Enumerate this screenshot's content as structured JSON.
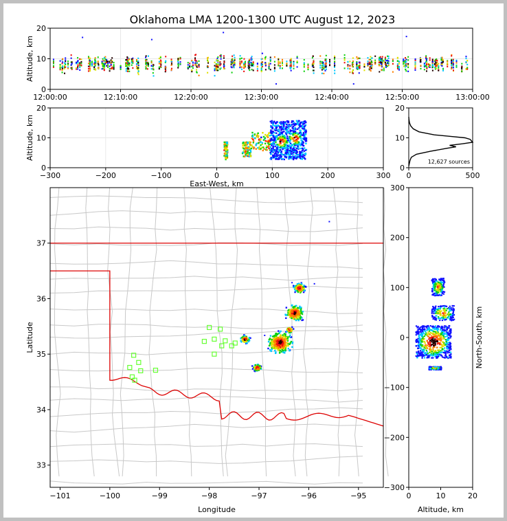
{
  "title": "Oklahoma LMA 1200-1300 UTC August 12, 2023",
  "colors": {
    "background": "#c0c0c0",
    "state_border": "#dd0000",
    "county_lines": "#c8c8c8",
    "stations": "#66ff33",
    "histogram": "#000000"
  },
  "chart_data": [
    {
      "id": "time-altitude",
      "type": "scatter",
      "xlabel": "",
      "ylabel": "Altitude, km",
      "xlim": [
        "12:00:00",
        "13:00:00"
      ],
      "ylim": [
        0,
        20
      ],
      "xticks": [
        "12:00:00",
        "12:10:00",
        "12:20:00",
        "12:30:00",
        "12:40:00",
        "12:50:00",
        "13:00:00"
      ],
      "yticks": [
        0,
        10,
        20
      ],
      "grid": true,
      "data_extent": {
        "altitude_km": [
          1,
          19
        ]
      }
    },
    {
      "id": "ew-altitude",
      "type": "scatter",
      "xlabel": "East-West, km",
      "ylabel": "Altitude, km",
      "xlim": [
        -300,
        300
      ],
      "ylim": [
        0,
        20
      ],
      "xticks": [
        -300,
        -200,
        -100,
        0,
        100,
        200,
        300
      ],
      "yticks": [
        0,
        10,
        20
      ],
      "grid": true,
      "clusters": [
        {
          "x_km": [
            12,
            18
          ],
          "alt_km": [
            3,
            9
          ]
        },
        {
          "x_km": [
            45,
            60
          ],
          "alt_km": [
            4,
            9
          ]
        },
        {
          "x_km": [
            60,
            95
          ],
          "alt_km": [
            6,
            12
          ]
        },
        {
          "x_km": [
            95,
            160
          ],
          "alt_km": [
            3,
            16
          ]
        }
      ],
      "densest_cores": [
        {
          "x_km": 115,
          "alt_km": 9
        },
        {
          "x_km": 140,
          "alt_km": 10
        }
      ]
    },
    {
      "id": "altitude-histogram",
      "type": "line",
      "xlabel": "",
      "ylabel": "",
      "xlim": [
        0,
        500
      ],
      "ylim": [
        0,
        20
      ],
      "xticks": [
        0,
        500
      ],
      "yticks": [
        0,
        10,
        20
      ],
      "annotation": "12,627 sources",
      "profile": [
        {
          "alt": 0.5,
          "count": 0
        },
        {
          "alt": 1.5,
          "count": 5
        },
        {
          "alt": 2.5,
          "count": 10
        },
        {
          "alt": 3.5,
          "count": 20
        },
        {
          "alt": 4.5,
          "count": 60
        },
        {
          "alt": 5.5,
          "count": 170
        },
        {
          "alt": 6.5,
          "count": 300
        },
        {
          "alt": 7.0,
          "count": 370
        },
        {
          "alt": 7.5,
          "count": 320
        },
        {
          "alt": 8.0,
          "count": 420
        },
        {
          "alt": 8.5,
          "count": 500
        },
        {
          "alt": 9.0,
          "count": 490
        },
        {
          "alt": 9.5,
          "count": 480
        },
        {
          "alt": 10.0,
          "count": 440
        },
        {
          "alt": 10.5,
          "count": 320
        },
        {
          "alt": 11.0,
          "count": 200
        },
        {
          "alt": 12.0,
          "count": 80
        },
        {
          "alt": 13.0,
          "count": 35
        },
        {
          "alt": 14.0,
          "count": 15
        },
        {
          "alt": 15.0,
          "count": 6
        },
        {
          "alt": 16.0,
          "count": 2
        },
        {
          "alt": 17.0,
          "count": 0
        }
      ]
    },
    {
      "id": "plan-view",
      "type": "scatter",
      "xlabel": "Longitude",
      "ylabel": "Latitude",
      "xlim": [
        -101.2,
        -94.5
      ],
      "ylim": [
        32.6,
        38.0
      ],
      "xticks": [
        -101,
        -100,
        -99,
        -98,
        -97,
        -96,
        -95
      ],
      "yticks": [
        33,
        34,
        35,
        36,
        37
      ],
      "stations": [
        {
          "lon": -99.6,
          "lat": 34.76
        },
        {
          "lon": -99.52,
          "lat": 34.98
        },
        {
          "lon": -99.42,
          "lat": 34.85
        },
        {
          "lon": -99.38,
          "lat": 34.7
        },
        {
          "lon": -99.55,
          "lat": 34.59
        },
        {
          "lon": -99.5,
          "lat": 34.53
        },
        {
          "lon": -99.08,
          "lat": 34.71
        },
        {
          "lon": -98.0,
          "lat": 35.48
        },
        {
          "lon": -97.9,
          "lat": 35.27
        },
        {
          "lon": -98.1,
          "lat": 35.23
        },
        {
          "lon": -97.78,
          "lat": 35.45
        },
        {
          "lon": -97.68,
          "lat": 35.24
        },
        {
          "lon": -97.75,
          "lat": 35.15
        },
        {
          "lon": -97.55,
          "lat": 35.15
        },
        {
          "lon": -97.48,
          "lat": 35.2
        },
        {
          "lon": -97.9,
          "lat": 35.0
        }
      ],
      "storm_cells": [
        {
          "lon": -96.6,
          "lat": 35.22,
          "size": 0.22
        },
        {
          "lon": -96.3,
          "lat": 35.75,
          "size": 0.16
        },
        {
          "lon": -96.2,
          "lat": 36.2,
          "size": 0.1
        },
        {
          "lon": -97.3,
          "lat": 35.28,
          "size": 0.08
        },
        {
          "lon": -97.05,
          "lat": 34.77,
          "size": 0.07
        },
        {
          "lon": -96.4,
          "lat": 35.45,
          "size": 0.06
        }
      ]
    },
    {
      "id": "altitude-ns",
      "type": "scatter",
      "xlabel": "Altitude, km",
      "ylabel": "North-South, km",
      "xlim": [
        0,
        20
      ],
      "ylim": [
        -300,
        300
      ],
      "xticks": [
        0,
        10,
        20
      ],
      "yticks": [
        -300,
        -200,
        -100,
        0,
        100,
        200,
        300
      ],
      "clusters": [
        {
          "alt_km": [
            7,
            11
          ],
          "ns_km": [
            85,
            120
          ]
        },
        {
          "alt_km": [
            7,
            14
          ],
          "ns_km": [
            35,
            65
          ]
        },
        {
          "alt_km": [
            2,
            13
          ],
          "ns_km": [
            -40,
            25
          ]
        },
        {
          "alt_km": [
            6,
            10
          ],
          "ns_km": [
            -63,
            -57
          ]
        }
      ]
    }
  ]
}
